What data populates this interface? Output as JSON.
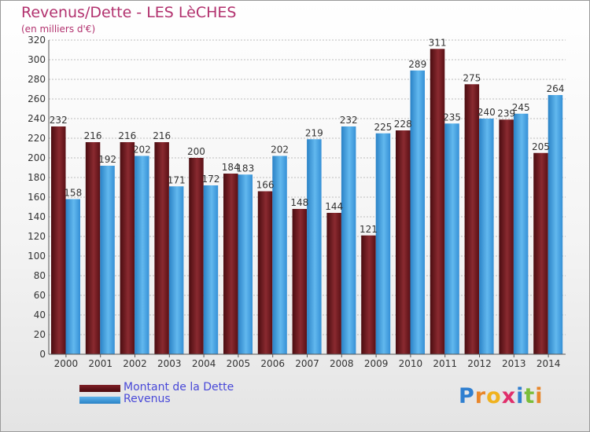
{
  "chart_data": {
    "type": "bar",
    "title": "Revenus/Dette - LES LèCHES",
    "subtitle": "(en milliers d'€)",
    "categories": [
      "2000",
      "2001",
      "2002",
      "2003",
      "2004",
      "2005",
      "2006",
      "2007",
      "2008",
      "2009",
      "2010",
      "2011",
      "2012",
      "2013",
      "2014"
    ],
    "series": [
      {
        "name": "Montant de la Dette",
        "color": "#6e1a1f",
        "values": [
          232,
          216,
          216,
          216,
          200,
          184,
          166,
          148,
          144,
          121,
          228,
          311,
          275,
          239,
          205
        ]
      },
      {
        "name": "Revenus",
        "color": "#3c98db",
        "values": [
          158,
          192,
          202,
          171,
          172,
          183,
          202,
          219,
          232,
          225,
          289,
          235,
          240,
          245,
          264
        ]
      }
    ],
    "ylim": [
      0,
      320
    ],
    "yticks": [
      0,
      20,
      40,
      60,
      80,
      100,
      120,
      140,
      160,
      180,
      200,
      220,
      240,
      260,
      280,
      300,
      320
    ],
    "grid": true,
    "legend": "bottom-left"
  },
  "logo": {
    "text": "Proxiti",
    "letters": [
      "P",
      "r",
      "o",
      "x",
      "i",
      "t",
      "i"
    ],
    "colors": [
      "#2f7fd0",
      "#e8862a",
      "#f0b21e",
      "#e02f6b",
      "#2f7fd0",
      "#7bbd3a",
      "#e8862a"
    ]
  }
}
